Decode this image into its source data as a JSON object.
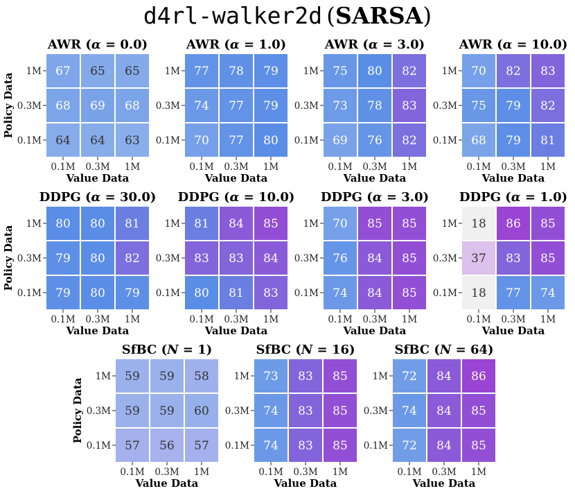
{
  "chart_data": {
    "type": "heatmap",
    "title": {
      "env": "d4rl-walker2d",
      "method": "SARSA"
    },
    "xlabel": "Value Data",
    "ylabel": "Policy Data",
    "x_ticks": [
      "0.1M",
      "0.3M",
      "1M"
    ],
    "y_ticks": [
      "1M",
      "0.3M",
      "0.1M"
    ],
    "panels": [
      {
        "name": "AWR",
        "param": "α = 0.0",
        "values": [
          [
            67,
            65,
            65
          ],
          [
            68,
            69,
            68
          ],
          [
            64,
            64,
            63
          ]
        ]
      },
      {
        "name": "AWR",
        "param": "α = 1.0",
        "values": [
          [
            77,
            78,
            79
          ],
          [
            74,
            77,
            79
          ],
          [
            70,
            77,
            80
          ]
        ]
      },
      {
        "name": "AWR",
        "param": "α = 3.0",
        "values": [
          [
            75,
            80,
            82
          ],
          [
            73,
            78,
            83
          ],
          [
            69,
            76,
            82
          ]
        ]
      },
      {
        "name": "AWR",
        "param": "α = 10.0",
        "values": [
          [
            70,
            82,
            83
          ],
          [
            75,
            79,
            82
          ],
          [
            68,
            79,
            81
          ]
        ]
      },
      {
        "name": "DDPG",
        "param": "α = 30.0",
        "values": [
          [
            80,
            80,
            81
          ],
          [
            79,
            80,
            82
          ],
          [
            79,
            80,
            79
          ]
        ]
      },
      {
        "name": "DDPG",
        "param": "α = 10.0",
        "values": [
          [
            81,
            84,
            85
          ],
          [
            83,
            83,
            84
          ],
          [
            80,
            81,
            83
          ]
        ]
      },
      {
        "name": "DDPG",
        "param": "α = 3.0",
        "values": [
          [
            70,
            85,
            85
          ],
          [
            76,
            84,
            85
          ],
          [
            74,
            84,
            85
          ]
        ]
      },
      {
        "name": "DDPG",
        "param": "α = 1.0",
        "values": [
          [
            18,
            86,
            85
          ],
          [
            37,
            83,
            85
          ],
          [
            18,
            77,
            74
          ]
        ]
      },
      {
        "name": "SfBC",
        "param": "N = 1",
        "values": [
          [
            59,
            59,
            58
          ],
          [
            59,
            59,
            60
          ],
          [
            57,
            56,
            57
          ]
        ]
      },
      {
        "name": "SfBC",
        "param": "N = 16",
        "values": [
          [
            73,
            83,
            85
          ],
          [
            74,
            83,
            85
          ],
          [
            74,
            83,
            85
          ]
        ]
      },
      {
        "name": "SfBC",
        "param": "N = 64",
        "values": [
          [
            72,
            84,
            86
          ],
          [
            74,
            84,
            85
          ],
          [
            72,
            84,
            85
          ]
        ]
      }
    ],
    "colormap": {
      "stops": [
        {
          "value": 18,
          "color": "#f0f0f1"
        },
        {
          "value": 40,
          "color": "#d8b9ea"
        },
        {
          "value": 57,
          "color": "#a4b1ec"
        },
        {
          "value": 62,
          "color": "#8db0eb"
        },
        {
          "value": 80,
          "color": "#5a8de6"
        },
        {
          "value": 82,
          "color": "#7c6fde"
        },
        {
          "value": 86,
          "color": "#9944d2"
        }
      ]
    }
  }
}
